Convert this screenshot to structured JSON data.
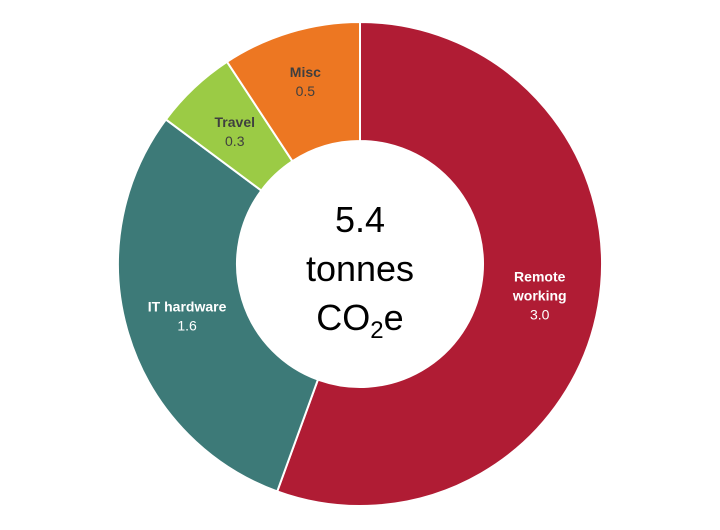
{
  "chart_data": {
    "type": "pie",
    "style": "donut",
    "center_label": {
      "value": "5.4",
      "unit_line": "tonnes",
      "co2_main": "CO",
      "co2_sub": "2",
      "co2_suffix": "e"
    },
    "slices": [
      {
        "label_lines": [
          "Remote",
          "working"
        ],
        "value": 3.0,
        "value_text": "3.0",
        "color": "#B01C34",
        "label_color": "#FFFFFF"
      },
      {
        "label_lines": [
          "IT hardware"
        ],
        "value": 1.6,
        "value_text": "1.6",
        "color": "#3D7A78",
        "label_color": "#FFFFFF"
      },
      {
        "label_lines": [
          "Travel"
        ],
        "value": 0.3,
        "value_text": "0.3",
        "color": "#9BCB45",
        "label_color": "#3F3F3F"
      },
      {
        "label_lines": [
          "Misc"
        ],
        "value": 0.5,
        "value_text": "0.5",
        "color": "#ED7722",
        "label_color": "#3F3F3F"
      }
    ],
    "total": 5.4
  }
}
